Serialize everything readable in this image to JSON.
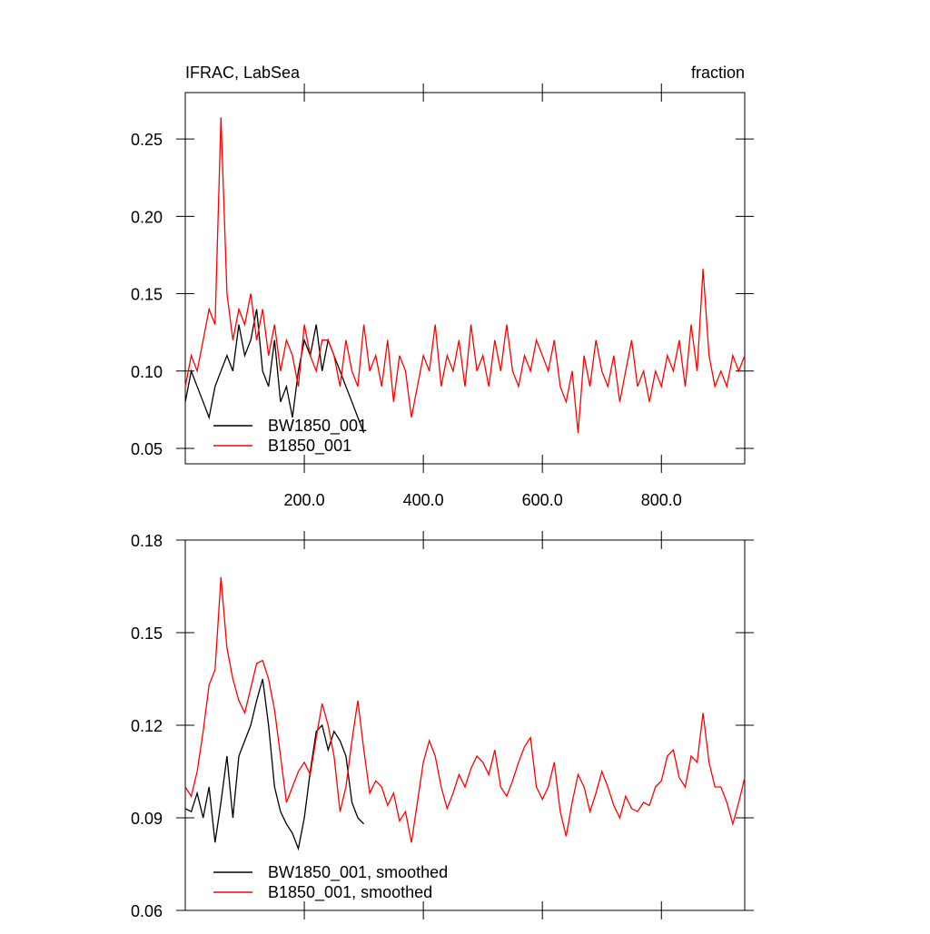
{
  "chart_data": [
    {
      "type": "line",
      "title": "IFRAC, LabSea",
      "right_title": "fraction",
      "x": [
        0,
        10,
        20,
        30,
        40,
        50,
        60,
        70,
        80,
        90,
        100,
        110,
        120,
        130,
        140,
        150,
        160,
        170,
        180,
        190,
        200,
        210,
        220,
        230,
        240,
        250,
        260,
        270,
        280,
        290,
        300,
        310,
        320,
        330,
        340,
        350,
        360,
        370,
        380,
        390,
        400,
        410,
        420,
        430,
        440,
        450,
        460,
        470,
        480,
        490,
        500,
        510,
        520,
        530,
        540,
        550,
        560,
        570,
        580,
        590,
        600,
        610,
        620,
        630,
        640,
        650,
        660,
        670,
        680,
        690,
        700,
        710,
        720,
        730,
        740,
        750,
        760,
        770,
        780,
        790,
        800,
        810,
        820,
        830,
        840,
        850,
        860,
        870,
        880,
        890,
        900,
        910,
        920,
        930,
        940
      ],
      "xlim": [
        0,
        940
      ],
      "xticks": [
        {
          "value": 200,
          "label": "200.0"
        },
        {
          "value": 400,
          "label": "400.0"
        },
        {
          "value": 600,
          "label": "600.0"
        },
        {
          "value": 800,
          "label": "800.0"
        }
      ],
      "ylim": [
        0.04,
        0.28
      ],
      "yticks": [
        0.05,
        {
          "value": 0.1,
          "label": "0.10"
        },
        0.15,
        {
          "value": 0.2,
          "label": "0.20"
        },
        0.25
      ],
      "series": [
        {
          "name": "BW1850_001",
          "color": "#000000",
          "values": [
            0.08,
            0.1,
            0.09,
            0.08,
            0.07,
            0.09,
            0.1,
            0.11,
            0.1,
            0.13,
            0.11,
            0.12,
            0.14,
            0.1,
            0.09,
            0.12,
            0.08,
            0.09,
            0.07,
            0.1,
            0.12,
            0.11,
            0.13,
            0.1,
            0.12,
            0.11,
            0.1,
            0.09,
            0.08,
            0.07,
            0.06,
            null,
            null,
            null,
            null,
            null,
            null,
            null,
            null,
            null,
            null,
            null,
            null,
            null,
            null,
            null,
            null,
            null,
            null,
            null,
            null,
            null,
            null,
            null,
            null,
            null,
            null,
            null,
            null,
            null,
            null,
            null,
            null,
            null,
            null,
            null,
            null,
            null,
            null,
            null,
            null,
            null,
            null,
            null,
            null,
            null,
            null,
            null,
            null,
            null,
            null,
            null,
            null,
            null,
            null,
            null,
            null,
            null,
            null,
            null,
            null,
            null,
            null,
            null,
            null
          ]
        },
        {
          "name": "B1850_001",
          "color": "#ff0000",
          "values": [
            0.09,
            0.11,
            0.1,
            0.12,
            0.14,
            0.13,
            0.264,
            0.15,
            0.12,
            0.14,
            0.13,
            0.15,
            0.12,
            0.14,
            0.11,
            0.13,
            0.1,
            0.12,
            0.11,
            0.09,
            0.13,
            0.11,
            0.1,
            0.12,
            0.12,
            0.11,
            0.09,
            0.12,
            0.1,
            0.09,
            0.13,
            0.1,
            0.11,
            0.09,
            0.12,
            0.08,
            0.11,
            0.1,
            0.07,
            0.09,
            0.11,
            0.1,
            0.13,
            0.09,
            0.11,
            0.1,
            0.12,
            0.09,
            0.13,
            0.1,
            0.11,
            0.09,
            0.12,
            0.1,
            0.13,
            0.1,
            0.09,
            0.11,
            0.1,
            0.12,
            0.11,
            0.1,
            0.12,
            0.09,
            0.08,
            0.1,
            0.06,
            0.11,
            0.09,
            0.12,
            0.1,
            0.09,
            0.11,
            0.08,
            0.1,
            0.12,
            0.09,
            0.1,
            0.08,
            0.1,
            0.09,
            0.11,
            0.1,
            0.12,
            0.09,
            0.13,
            0.1,
            0.166,
            0.11,
            0.09,
            0.1,
            0.09,
            0.11,
            0.1,
            0.11
          ]
        }
      ]
    },
    {
      "type": "line",
      "x": [
        0,
        10,
        20,
        30,
        40,
        50,
        60,
        70,
        80,
        90,
        100,
        110,
        120,
        130,
        140,
        150,
        160,
        170,
        180,
        190,
        200,
        210,
        220,
        230,
        240,
        250,
        260,
        270,
        280,
        290,
        300,
        310,
        320,
        330,
        340,
        350,
        360,
        370,
        380,
        390,
        400,
        410,
        420,
        430,
        440,
        450,
        460,
        470,
        480,
        490,
        500,
        510,
        520,
        530,
        540,
        550,
        560,
        570,
        580,
        590,
        600,
        610,
        620,
        630,
        640,
        650,
        660,
        670,
        680,
        690,
        700,
        710,
        720,
        730,
        740,
        750,
        760,
        770,
        780,
        790,
        800,
        810,
        820,
        830,
        840,
        850,
        860,
        870,
        880,
        890,
        900,
        910,
        920,
        930,
        940
      ],
      "xlim": [
        0,
        940
      ],
      "xticks": [
        200,
        400,
        600,
        800
      ],
      "ylim": [
        0.06,
        0.18
      ],
      "yticks": [
        0.06,
        0.09,
        0.12,
        0.15,
        0.18
      ],
      "series": [
        {
          "name": "BW1850_001, smoothed",
          "color": "#000000",
          "values": [
            0.093,
            0.092,
            0.098,
            0.09,
            0.1,
            0.082,
            0.095,
            0.11,
            0.09,
            0.11,
            0.115,
            0.12,
            0.128,
            0.135,
            0.12,
            0.1,
            0.092,
            0.088,
            0.085,
            0.08,
            0.09,
            0.105,
            0.118,
            0.12,
            0.112,
            0.118,
            0.115,
            0.11,
            0.095,
            0.09,
            0.088,
            null,
            null,
            null,
            null,
            null,
            null,
            null,
            null,
            null,
            null,
            null,
            null,
            null,
            null,
            null,
            null,
            null,
            null,
            null,
            null,
            null,
            null,
            null,
            null,
            null,
            null,
            null,
            null,
            null,
            null,
            null,
            null,
            null,
            null,
            null,
            null,
            null,
            null,
            null,
            null,
            null,
            null,
            null,
            null,
            null,
            null,
            null,
            null,
            null,
            null,
            null,
            null,
            null,
            null,
            null,
            null,
            null,
            null,
            null,
            null,
            null,
            null,
            null,
            null
          ]
        },
        {
          "name": "B1850_001, smoothed",
          "color": "#ff0000",
          "values": [
            0.1,
            0.097,
            0.105,
            0.118,
            0.133,
            0.138,
            0.168,
            0.145,
            0.135,
            0.128,
            0.124,
            0.132,
            0.14,
            0.141,
            0.135,
            0.125,
            0.11,
            0.095,
            0.1,
            0.105,
            0.108,
            0.104,
            0.116,
            0.127,
            0.12,
            0.11,
            0.092,
            0.1,
            0.115,
            0.128,
            0.112,
            0.098,
            0.102,
            0.1,
            0.094,
            0.098,
            0.089,
            0.092,
            0.082,
            0.095,
            0.108,
            0.115,
            0.11,
            0.1,
            0.093,
            0.098,
            0.104,
            0.1,
            0.106,
            0.11,
            0.108,
            0.104,
            0.112,
            0.1,
            0.097,
            0.102,
            0.108,
            0.113,
            0.116,
            0.1,
            0.096,
            0.1,
            0.108,
            0.092,
            0.084,
            0.095,
            0.104,
            0.1,
            0.092,
            0.098,
            0.105,
            0.1,
            0.094,
            0.09,
            0.097,
            0.093,
            0.092,
            0.095,
            0.094,
            0.1,
            0.102,
            0.11,
            0.112,
            0.103,
            0.1,
            0.11,
            0.108,
            0.124,
            0.108,
            0.1,
            0.1,
            0.095,
            0.088,
            0.095,
            0.103
          ]
        }
      ]
    }
  ]
}
